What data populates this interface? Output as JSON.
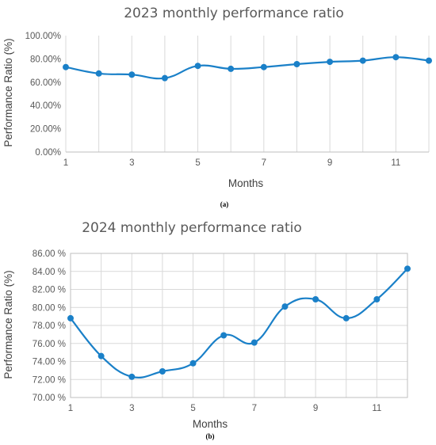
{
  "chart_data": [
    {
      "type": "line",
      "title": "2023 monthly performance ratio",
      "xlabel": "Months",
      "ylabel": "Performance Ratio (%)",
      "caption": "(a)",
      "x": [
        1,
        2,
        3,
        4,
        5,
        6,
        7,
        8,
        9,
        10,
        11,
        12
      ],
      "series": [
        {
          "values": [
            73.0,
            67.5,
            66.5,
            63.5,
            74.0,
            71.5,
            73.0,
            75.5,
            77.5,
            78.5,
            81.5,
            78.5
          ]
        }
      ],
      "xlim": [
        1,
        12
      ],
      "ylim": [
        0,
        100
      ],
      "xticks": [
        1,
        3,
        5,
        7,
        9,
        11
      ],
      "xtick_labels": [
        "1",
        "3",
        "5",
        "7",
        "9",
        "11"
      ],
      "yticks": [
        0,
        20,
        40,
        60,
        80,
        100
      ],
      "ytick_labels": [
        "0.00%",
        "20.00%",
        "40.00%",
        "60.00%",
        "80.00%",
        "100.00%"
      ],
      "grid": "vertical",
      "color": "#1a80c8"
    },
    {
      "type": "line",
      "title": "2024 monthly performance ratio",
      "xlabel": "Months",
      "ylabel": "Performance Ratio (%)",
      "caption": "(b)",
      "x": [
        1,
        2,
        3,
        4,
        5,
        6,
        7,
        8,
        9,
        10,
        11,
        12
      ],
      "series": [
        {
          "values": [
            78.8,
            74.6,
            72.3,
            72.9,
            73.8,
            76.9,
            76.1,
            80.1,
            80.9,
            78.8,
            80.9,
            84.3
          ]
        }
      ],
      "xlim": [
        1,
        12
      ],
      "ylim": [
        70,
        86
      ],
      "xticks": [
        1,
        3,
        5,
        7,
        9,
        11
      ],
      "xtick_labels": [
        "1",
        "3",
        "5",
        "7",
        "9",
        "11"
      ],
      "yticks": [
        70,
        72,
        74,
        76,
        78,
        80,
        82,
        84,
        86
      ],
      "ytick_labels": [
        "70.00 %",
        "72.00 %",
        "74.00 %",
        "76.00 %",
        "78.00 %",
        "80.00 %",
        "82.00 %",
        "84.00 %",
        "86.00 %"
      ],
      "grid": "both",
      "color": "#1a80c8"
    }
  ]
}
